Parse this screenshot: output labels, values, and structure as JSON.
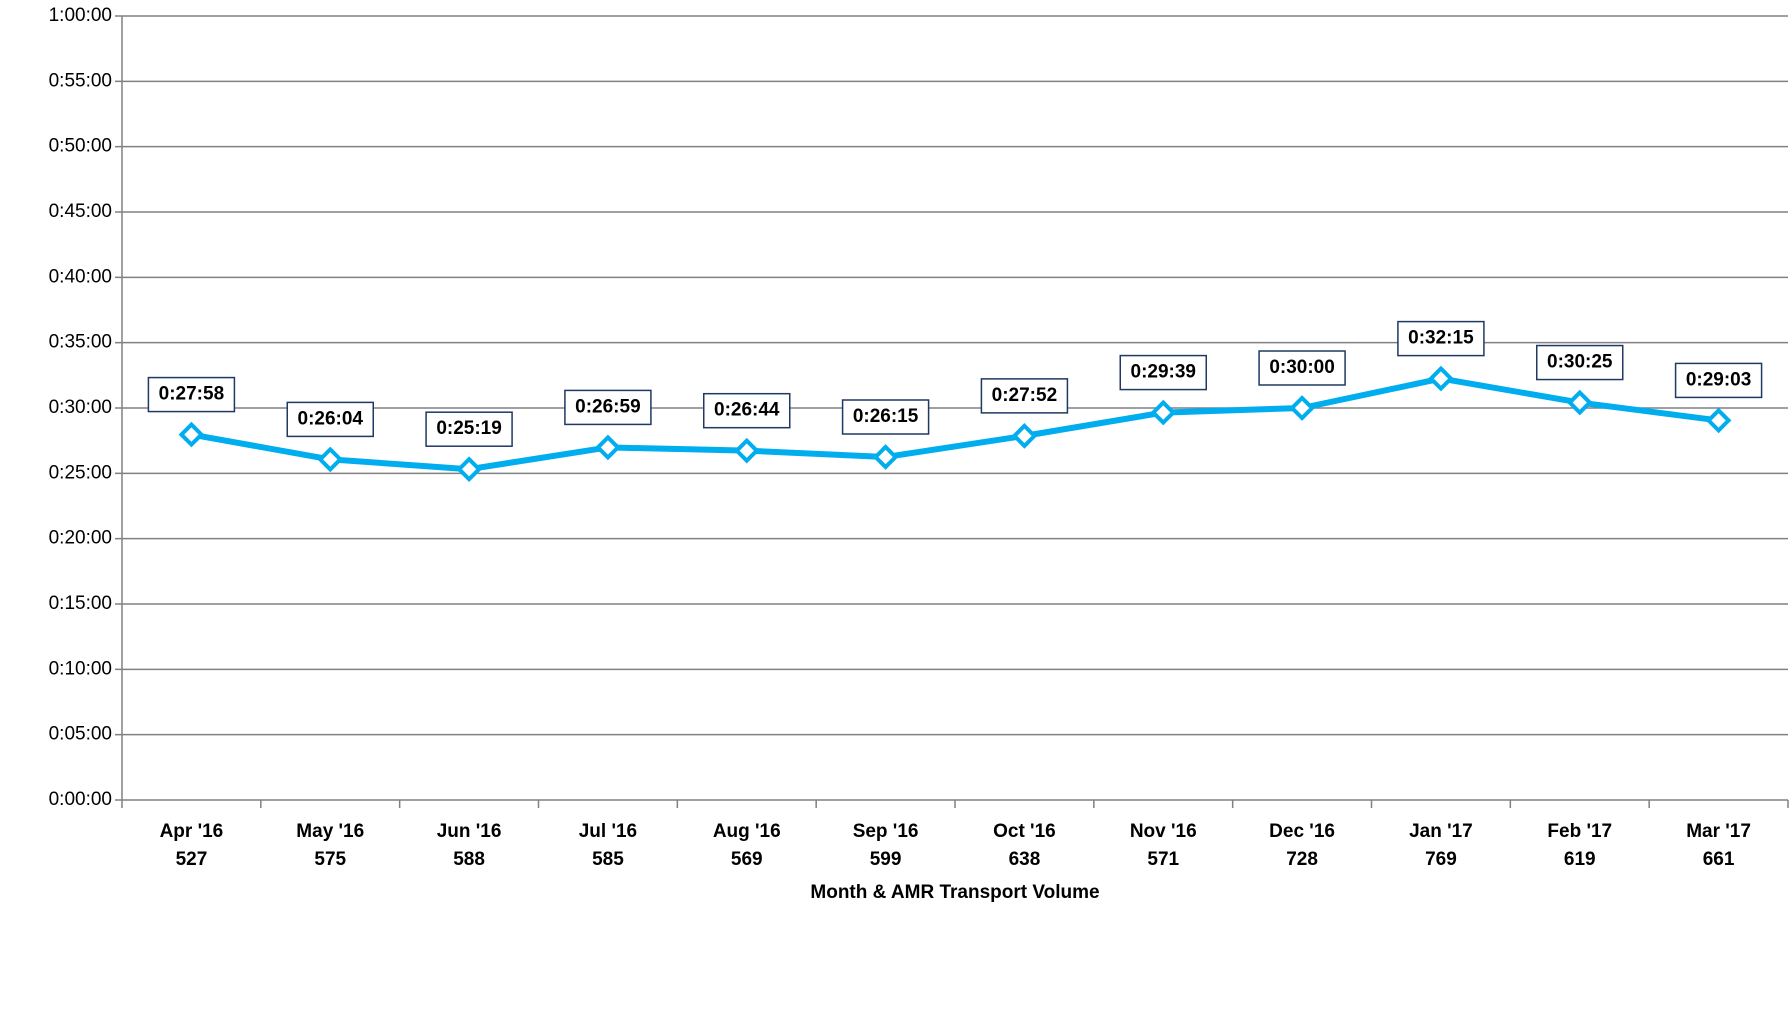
{
  "chart_data": {
    "type": "line",
    "x_label": "Month & AMR Transport Volume",
    "categories": [
      "Apr '16",
      "May '16",
      "Jun '16",
      "Jul '16",
      "Aug '16",
      "Sep '16",
      "Oct '16",
      "Nov '16",
      "Dec '16",
      "Jan '17",
      "Feb '17",
      "Mar '17"
    ],
    "volumes": [
      527,
      575,
      588,
      585,
      569,
      599,
      638,
      571,
      728,
      769,
      619,
      661
    ],
    "series": [
      {
        "color": "#00adef",
        "values": [
          1678,
          1564,
          1519,
          1619,
          1604,
          1575,
          1672,
          1779,
          1800,
          1935,
          1825,
          1743
        ],
        "value_labels": [
          "0:27:58",
          "0:26:04",
          "0:25:19",
          "0:26:59",
          "0:26:44",
          "0:26:15",
          "0:27:52",
          "0:29:39",
          "0:30:00",
          "0:32:15",
          "0:30:25",
          "0:29:03"
        ]
      }
    ],
    "ylim": [
      0,
      3600
    ],
    "yticks": [
      {
        "value": 0,
        "label": "0:00:00"
      },
      {
        "value": 300,
        "label": "0:05:00"
      },
      {
        "value": 600,
        "label": "0:10:00"
      },
      {
        "value": 900,
        "label": "0:15:00"
      },
      {
        "value": 1200,
        "label": "0:20:00"
      },
      {
        "value": 1500,
        "label": "0:25:00"
      },
      {
        "value": 1800,
        "label": "0:30:00"
      },
      {
        "value": 2100,
        "label": "0:35:00"
      },
      {
        "value": 2400,
        "label": "0:40:00"
      },
      {
        "value": 2700,
        "label": "0:45:00"
      },
      {
        "value": 3000,
        "label": "0:50:00"
      },
      {
        "value": 3300,
        "label": "0:55:00"
      },
      {
        "value": 3600,
        "label": "1:00:00"
      }
    ],
    "grid": true
  }
}
